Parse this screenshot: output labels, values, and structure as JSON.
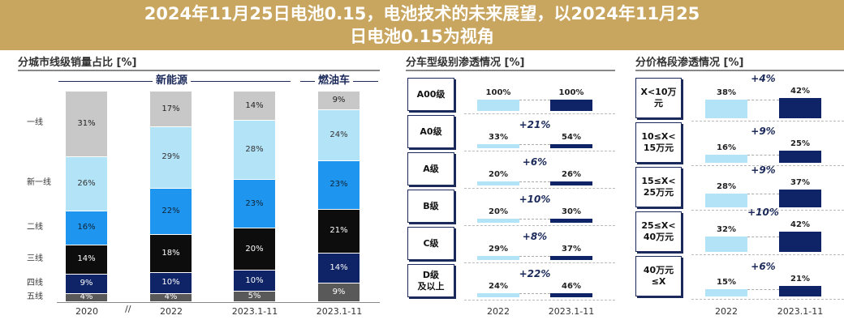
{
  "colors": {
    "gray_top": "#c8c8c8",
    "light_blue": "#b3e3f7",
    "blue": "#1e96f0",
    "black": "#0d0d0d",
    "navy": "#0e2466",
    "dark_gray": "#595959",
    "bar_2022": "#b3e3f7",
    "bar_2023": "#0e2466",
    "overlay": "#c49e52"
  },
  "overlay": {
    "line1": "2024年11月25日电池0.15，电池技术的未来展望，以2024年11月25",
    "line2": "日电池0.15为视角"
  },
  "chart_data": [
    {
      "type": "bar",
      "stacked": true,
      "title": "分城市线级销量占比 [%]",
      "group_labels": [
        "新能源",
        "燃油车"
      ],
      "categories": [
        "2020",
        "2022",
        "2023.1-11",
        "2023.1-11"
      ],
      "series": [
        {
          "name": "一线",
          "values": [
            31,
            17,
            14,
            9
          ]
        },
        {
          "name": "新一线",
          "values": [
            26,
            29,
            28,
            24
          ]
        },
        {
          "name": "二线",
          "values": [
            16,
            22,
            23,
            23
          ]
        },
        {
          "name": "三线",
          "values": [
            14,
            18,
            20,
            21
          ]
        },
        {
          "name": "四线",
          "values": [
            9,
            10,
            10,
            14
          ]
        },
        {
          "name": "五线",
          "values": [
            4,
            4,
            5,
            9
          ]
        }
      ]
    },
    {
      "type": "bar",
      "title": "分车型级别渗透情况 [%]",
      "x": [
        "2022",
        "2023.1-11"
      ],
      "rows": [
        {
          "label": "A00级",
          "values": [
            100,
            100
          ],
          "delta": ""
        },
        {
          "label": "A0级",
          "values": [
            33,
            54
          ],
          "delta": "+21%"
        },
        {
          "label": "A级",
          "values": [
            20,
            26
          ],
          "delta": "+6%"
        },
        {
          "label": "B级",
          "values": [
            20,
            30
          ],
          "delta": "+10%"
        },
        {
          "label": "C级",
          "values": [
            29,
            37
          ],
          "delta": "+8%"
        },
        {
          "label": "D级\n及以上",
          "values": [
            24,
            46
          ],
          "delta": "+22%"
        }
      ]
    },
    {
      "type": "bar",
      "title": "分价格段渗透情况 [%]",
      "x": [
        "2022",
        "2023.1-11"
      ],
      "rows": [
        {
          "label": "X<10万\n元",
          "values": [
            38,
            42
          ],
          "delta": "+4%"
        },
        {
          "label": "10≤X<\n15万元",
          "values": [
            16,
            25
          ],
          "delta": "+9%"
        },
        {
          "label": "15≤X<\n25万元",
          "values": [
            28,
            37
          ],
          "delta": "+9%"
        },
        {
          "label": "25≤X<\n40万元",
          "values": [
            32,
            42
          ],
          "delta": "+10%"
        },
        {
          "label": "40万元\n≤X",
          "values": [
            15,
            21
          ],
          "delta": "+6%"
        }
      ]
    }
  ]
}
